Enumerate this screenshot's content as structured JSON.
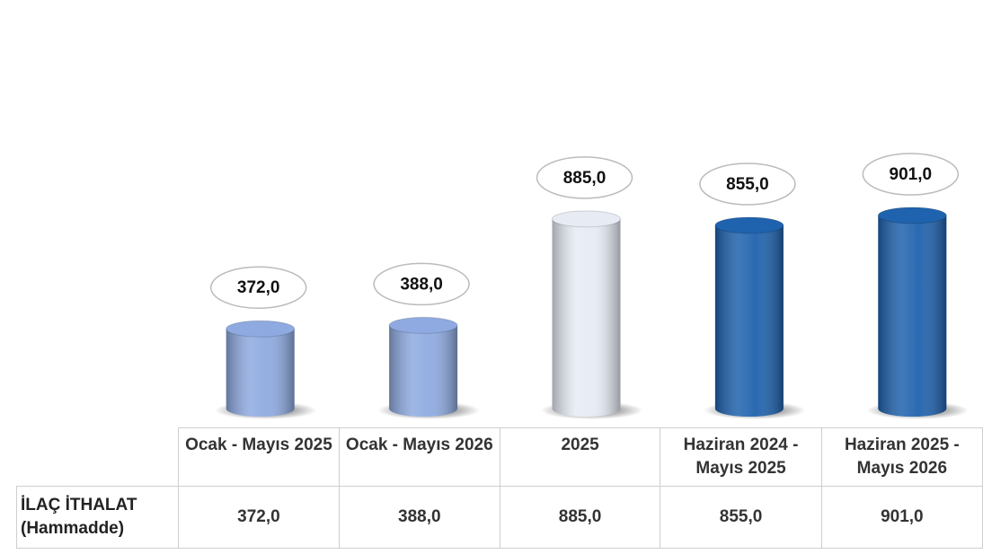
{
  "chart_data": {
    "type": "cylinder",
    "categories": [
      "Ocak - Mayıs 2025",
      "Ocak - Mayıs 2026",
      "2025",
      "Haziran 2024 - Mayıs 2025",
      "Haziran 2025 - Mayıs 2026"
    ],
    "series": [
      {
        "name": "İLAÇ İTHALAT (Hammadde)",
        "values": [
          372,
          388,
          885,
          855,
          901
        ],
        "value_labels": [
          "372,0",
          "388,0",
          "885,0",
          "855,0",
          "901,0"
        ],
        "colors": [
          "#8eaae0",
          "#8eaae0",
          "#e6ebf4",
          "#1f62ad",
          "#1f62ad"
        ]
      }
    ]
  }
}
